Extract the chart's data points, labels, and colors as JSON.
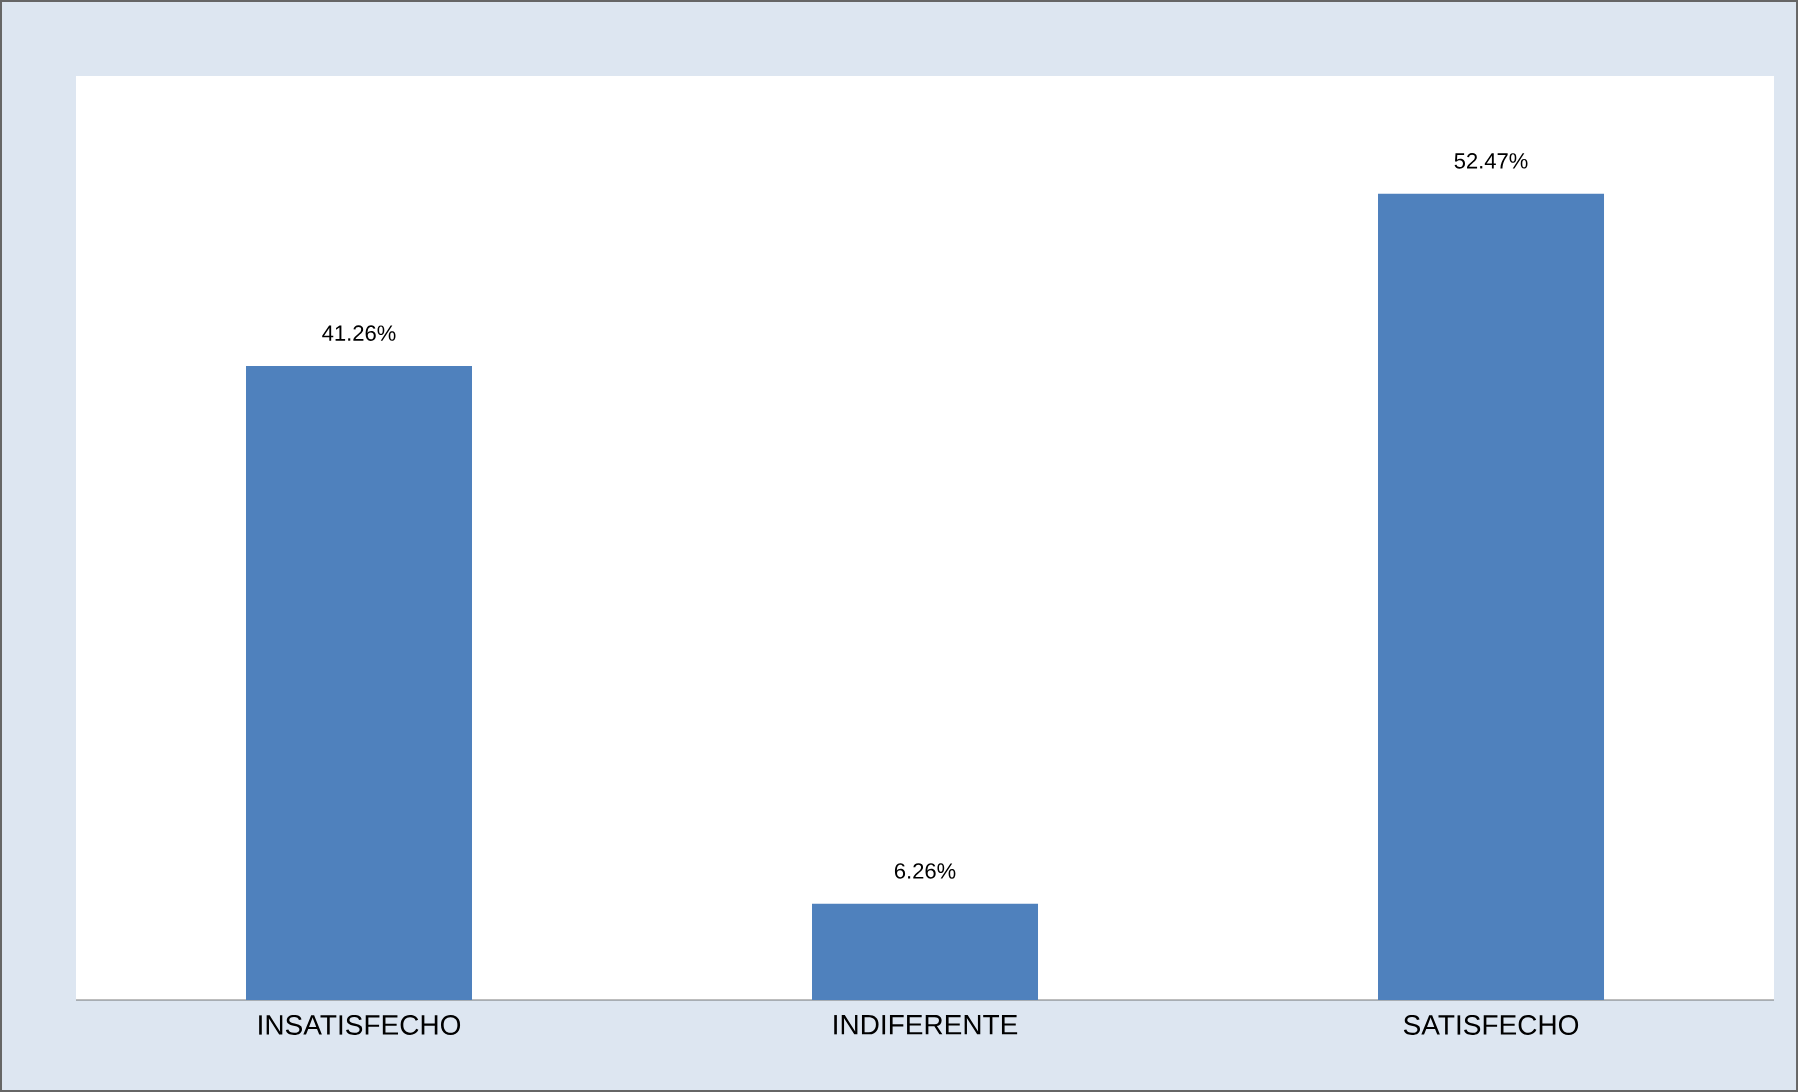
{
  "chart_data": {
    "type": "bar",
    "categories": [
      "INSATISFECHO",
      "INDIFERENTE",
      "SATISFECHO"
    ],
    "values": [
      41.26,
      6.26,
      52.47
    ],
    "value_labels": [
      "41.26%",
      "6.26%",
      "52.47%"
    ],
    "color": "#4f81bd"
  }
}
